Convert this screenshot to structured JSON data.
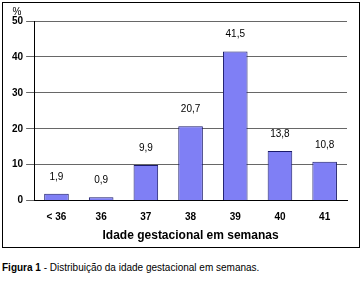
{
  "chart_data": {
    "type": "bar",
    "title": "Figura 1 - Distribuição da idade gestacional em semanas.",
    "x_label": "Idade gestacional em semanas",
    "y_label": "%",
    "categories": [
      "< 36",
      "36",
      "37",
      "38",
      "39",
      "40",
      "41"
    ],
    "values": [
      1.9,
      0.9,
      9.9,
      20.7,
      41.5,
      13.8,
      10.8
    ],
    "value_labels": [
      "1,9",
      "0,9",
      "9,9",
      "20,7",
      "41,5",
      "13,8",
      "10,8"
    ],
    "data_labels": true,
    "color": "#7f7ff5",
    "ylim": [
      0,
      50
    ],
    "yticks": [
      0,
      10,
      20,
      30,
      40,
      50
    ],
    "grid": true
  }
}
